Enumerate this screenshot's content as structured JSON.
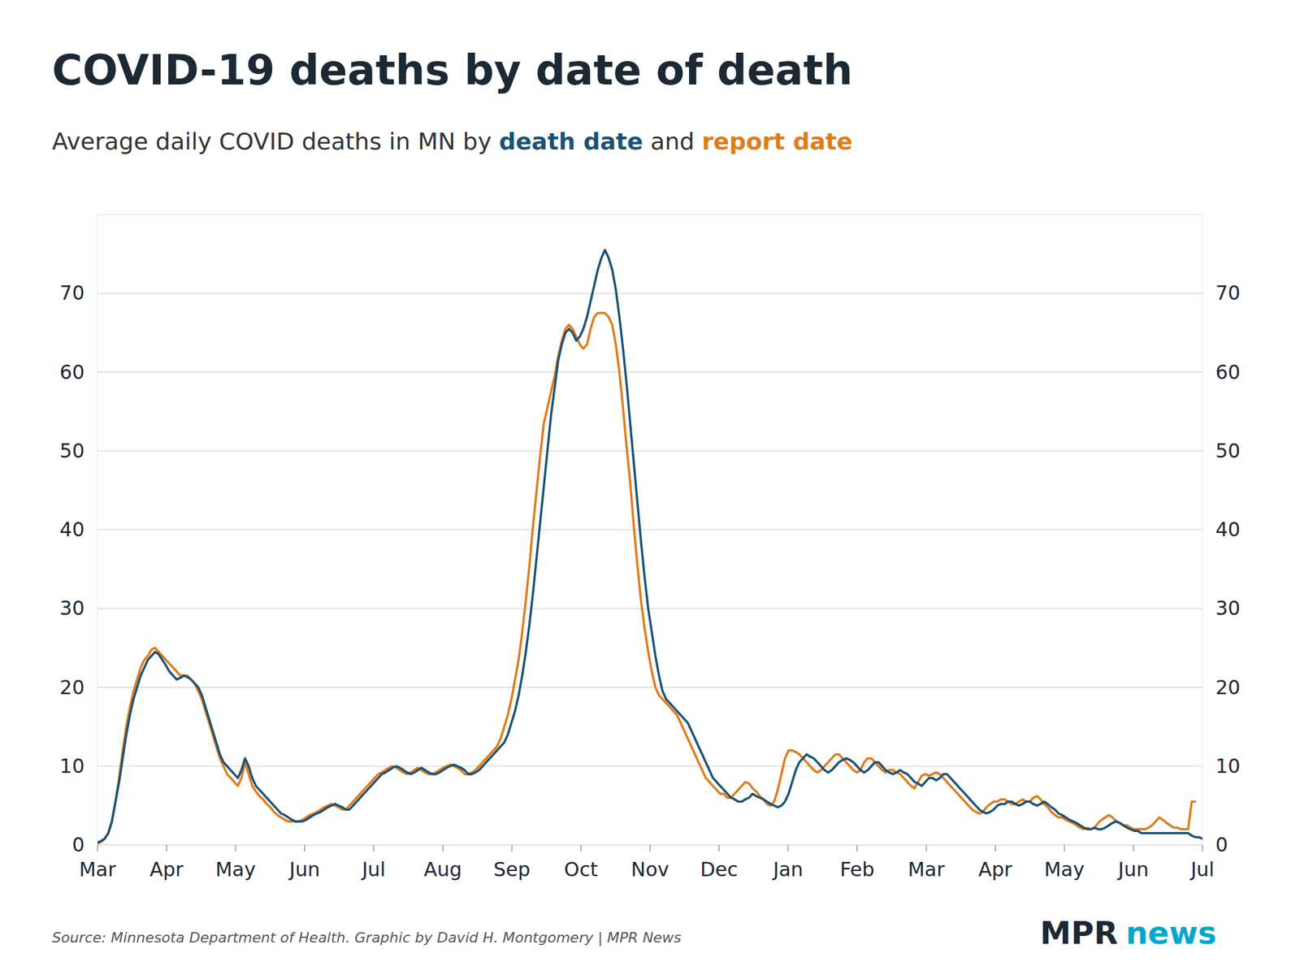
{
  "chart_data": {
    "type": "line",
    "title": "COVID-19 deaths by date of death",
    "subtitle": [
      "Average daily COVID deaths in MN by ",
      " and "
    ],
    "annotations": [
      "Source: Minnesota Department of Health. Graphic by David H. Montgomery | MPR News",
      "MPR",
      "news"
    ],
    "grid": true,
    "xlim": [
      0,
      307
    ],
    "xticks": [
      {
        "value": 0,
        "label": "Mar"
      },
      {
        "value": 19.1875,
        "label": "Apr"
      },
      {
        "value": 38.375,
        "label": "May"
      },
      {
        "value": 57.5625,
        "label": "Jun"
      },
      {
        "value": 76.75,
        "label": "Jul"
      },
      {
        "value": 95.9375,
        "label": "Aug"
      },
      {
        "value": 115.125,
        "label": "Sep"
      },
      {
        "value": 134.3125,
        "label": "Oct"
      },
      {
        "value": 153.5,
        "label": "Nov"
      },
      {
        "value": 172.6875,
        "label": "Dec"
      },
      {
        "value": 191.875,
        "label": "Jan"
      },
      {
        "value": 211.0625,
        "label": "Feb"
      },
      {
        "value": 230.25,
        "label": "Mar"
      },
      {
        "value": 249.4375,
        "label": "Apr"
      },
      {
        "value": 268.625,
        "label": "May"
      },
      {
        "value": 287.8125,
        "label": "Jun"
      },
      {
        "value": 307,
        "label": "Jul"
      }
    ],
    "ylim": [
      0,
      80
    ],
    "yticks": [
      0,
      10,
      20,
      30,
      40,
      50,
      60,
      70
    ],
    "x": [
      0,
      1,
      2,
      3,
      4,
      5,
      6,
      7,
      8,
      9,
      10,
      11,
      12,
      13,
      14,
      15,
      16,
      17,
      18,
      19,
      20,
      21,
      22,
      23,
      24,
      25,
      26,
      27,
      28,
      29,
      30,
      31,
      32,
      33,
      34,
      35,
      36,
      37,
      38,
      39,
      40,
      41,
      42,
      43,
      44,
      45,
      46,
      47,
      48,
      49,
      50,
      51,
      52,
      53,
      54,
      55,
      56,
      57,
      58,
      59,
      60,
      61,
      62,
      63,
      64,
      65,
      66,
      67,
      68,
      69,
      70,
      71,
      72,
      73,
      74,
      75,
      76,
      77,
      78,
      79,
      80,
      81,
      82,
      83,
      84,
      85,
      86,
      87,
      88,
      89,
      90,
      91,
      92,
      93,
      94,
      95,
      96,
      97,
      98,
      99,
      100,
      101,
      102,
      103,
      104,
      105,
      106,
      107,
      108,
      109,
      110,
      111,
      112,
      113,
      114,
      115,
      116,
      117,
      118,
      119,
      120,
      121,
      122,
      123,
      124,
      125,
      126,
      127,
      128,
      129,
      130,
      131,
      132,
      133,
      134,
      135,
      136,
      137,
      138,
      139,
      140,
      141,
      142,
      143,
      144,
      145,
      146,
      147,
      148,
      149,
      150,
      151,
      152,
      153,
      154,
      155,
      156,
      157,
      158,
      159,
      160,
      161,
      162,
      163,
      164,
      165,
      166,
      167,
      168,
      169,
      170,
      171,
      172,
      173,
      174,
      175,
      176,
      177,
      178,
      179,
      180,
      181,
      182,
      183,
      184,
      185,
      186,
      187,
      188,
      189,
      190,
      191,
      192,
      193,
      194,
      195,
      196,
      197,
      198,
      199,
      200,
      201,
      202,
      203,
      204,
      205,
      206,
      207,
      208,
      209,
      210,
      211,
      212,
      213,
      214,
      215,
      216,
      217,
      218,
      219,
      220,
      221,
      222,
      223,
      224,
      225,
      226,
      227,
      228,
      229,
      230,
      231,
      232,
      233,
      234,
      235,
      236,
      237,
      238,
      239,
      240,
      241,
      242,
      243,
      244,
      245,
      246,
      247,
      248,
      249,
      250,
      251,
      252,
      253,
      254,
      255,
      256,
      257,
      258,
      259,
      260,
      261,
      262,
      263,
      264,
      265,
      266,
      267,
      268,
      269,
      270,
      271,
      272,
      273,
      274,
      275,
      276,
      277,
      278,
      279,
      280,
      281,
      282,
      283,
      284,
      285,
      286,
      287,
      288,
      289,
      290,
      291,
      292,
      293,
      294,
      295,
      296,
      297,
      298,
      299,
      300,
      301,
      302,
      303,
      304,
      305,
      306,
      307
    ],
    "series": [
      {
        "name": "death date",
        "color": "#1a5276",
        "values": [
          0.3,
          0.5,
          0.8,
          1.5,
          3.0,
          5.5,
          8.0,
          11.0,
          14.0,
          16.5,
          18.5,
          20.0,
          21.5,
          22.5,
          23.5,
          24.0,
          24.5,
          24.2,
          23.5,
          22.8,
          22.0,
          21.5,
          21.0,
          21.2,
          21.5,
          21.3,
          21.0,
          20.5,
          20.0,
          19.0,
          17.5,
          16.0,
          14.5,
          13.0,
          11.5,
          10.5,
          10.0,
          9.5,
          9.0,
          8.5,
          9.5,
          11.0,
          10.0,
          8.5,
          7.5,
          7.0,
          6.5,
          6.0,
          5.5,
          5.0,
          4.5,
          4.0,
          3.8,
          3.5,
          3.2,
          3.0,
          3.0,
          3.0,
          3.2,
          3.5,
          3.8,
          4.0,
          4.2,
          4.5,
          4.8,
          5.0,
          5.2,
          5.0,
          4.8,
          4.5,
          4.5,
          5.0,
          5.5,
          6.0,
          6.5,
          7.0,
          7.5,
          8.0,
          8.5,
          9.0,
          9.2,
          9.5,
          9.8,
          10.0,
          9.8,
          9.5,
          9.2,
          9.0,
          9.2,
          9.5,
          9.8,
          9.5,
          9.2,
          9.0,
          9.0,
          9.2,
          9.5,
          9.8,
          10.0,
          10.2,
          10.0,
          9.8,
          9.5,
          9.0,
          9.0,
          9.2,
          9.5,
          10.0,
          10.5,
          11.0,
          11.5,
          12.0,
          12.5,
          13.0,
          14.0,
          15.5,
          17.0,
          19.0,
          21.5,
          24.5,
          28.0,
          32.0,
          36.5,
          41.0,
          45.5,
          50.0,
          54.5,
          58.0,
          61.5,
          63.5,
          65.0,
          65.5,
          65.0,
          64.0,
          64.5,
          65.5,
          67.0,
          69.0,
          71.0,
          73.0,
          74.5,
          75.5,
          74.5,
          73.0,
          70.5,
          67.0,
          63.0,
          58.5,
          53.5,
          48.5,
          43.5,
          38.5,
          34.0,
          30.0,
          27.0,
          24.0,
          21.5,
          19.5,
          18.5,
          18.0,
          17.5,
          17.0,
          16.5,
          16.0,
          15.5,
          14.5,
          13.5,
          12.5,
          11.5,
          10.5,
          9.5,
          8.5,
          8.0,
          7.5,
          7.0,
          6.5,
          6.0,
          5.8,
          5.5,
          5.5,
          5.8,
          6.0,
          6.5,
          6.2,
          6.0,
          5.8,
          5.5,
          5.2,
          5.0,
          4.8,
          5.0,
          5.5,
          6.5,
          8.0,
          9.5,
          10.5,
          11.0,
          11.5,
          11.2,
          11.0,
          10.5,
          10.0,
          9.5,
          9.2,
          9.5,
          10.0,
          10.5,
          10.8,
          11.0,
          10.8,
          10.5,
          10.0,
          9.5,
          9.2,
          9.5,
          10.0,
          10.5,
          10.5,
          10.0,
          9.5,
          9.2,
          9.0,
          9.2,
          9.5,
          9.2,
          9.0,
          8.5,
          8.0,
          7.8,
          7.5,
          8.0,
          8.5,
          8.5,
          8.2,
          8.5,
          9.0,
          9.0,
          8.5,
          8.0,
          7.5,
          7.0,
          6.5,
          6.0,
          5.5,
          5.0,
          4.5,
          4.2,
          4.0,
          4.2,
          4.5,
          5.0,
          5.2,
          5.2,
          5.5,
          5.5,
          5.2,
          5.0,
          5.2,
          5.5,
          5.5,
          5.2,
          5.0,
          5.2,
          5.5,
          5.2,
          4.8,
          4.5,
          4.0,
          3.8,
          3.5,
          3.2,
          3.0,
          2.8,
          2.5,
          2.2,
          2.0,
          2.0,
          2.2,
          2.0,
          2.0,
          2.2,
          2.5,
          2.8,
          3.0,
          2.8,
          2.5,
          2.2,
          2.0,
          1.8,
          1.8,
          1.5,
          1.5,
          1.5,
          1.5,
          1.5,
          1.5,
          1.5,
          1.5,
          1.5,
          1.5,
          1.5,
          1.5,
          1.5,
          1.5,
          1.2,
          1.0,
          1.0,
          0.8
        ]
      },
      {
        "name": "report date",
        "color": "#e07b1a",
        "values": [
          0.2,
          0.4,
          0.8,
          1.5,
          3.0,
          5.5,
          8.5,
          12.0,
          15.0,
          17.5,
          19.5,
          21.0,
          22.5,
          23.5,
          24.0,
          24.8,
          25.0,
          24.5,
          24.0,
          23.5,
          23.0,
          22.5,
          22.0,
          21.5,
          21.5,
          21.5,
          21.0,
          20.5,
          19.5,
          18.5,
          17.0,
          15.5,
          14.0,
          12.5,
          11.0,
          10.0,
          9.0,
          8.5,
          8.0,
          7.5,
          8.5,
          10.5,
          9.0,
          7.5,
          6.8,
          6.2,
          5.8,
          5.2,
          4.8,
          4.2,
          3.8,
          3.5,
          3.2,
          3.0,
          3.0,
          3.0,
          3.0,
          3.2,
          3.5,
          3.8,
          4.0,
          4.2,
          4.5,
          4.8,
          5.0,
          5.2,
          5.0,
          4.8,
          4.5,
          4.5,
          5.0,
          5.5,
          6.0,
          6.5,
          7.0,
          7.5,
          8.0,
          8.5,
          9.0,
          9.2,
          9.5,
          9.8,
          10.0,
          9.8,
          9.5,
          9.2,
          9.0,
          9.2,
          9.5,
          9.8,
          9.5,
          9.2,
          9.0,
          9.0,
          9.2,
          9.5,
          9.8,
          10.0,
          10.2,
          10.0,
          9.8,
          9.5,
          9.0,
          9.0,
          9.2,
          9.5,
          10.0,
          10.5,
          11.0,
          11.5,
          12.0,
          12.5,
          13.5,
          15.0,
          16.5,
          18.5,
          21.0,
          23.5,
          27.0,
          31.0,
          35.5,
          40.5,
          45.0,
          49.5,
          53.5,
          55.5,
          57.5,
          59.5,
          62.0,
          64.0,
          65.5,
          66.0,
          65.5,
          64.5,
          63.5,
          63.0,
          63.5,
          65.5,
          67.0,
          67.5,
          67.5,
          67.5,
          67.0,
          66.0,
          63.5,
          60.0,
          55.5,
          50.5,
          46.0,
          40.5,
          35.5,
          31.0,
          27.5,
          24.5,
          22.0,
          20.0,
          19.0,
          18.5,
          18.0,
          17.5,
          17.0,
          16.5,
          15.5,
          14.5,
          13.5,
          12.5,
          11.5,
          10.5,
          9.5,
          8.5,
          8.0,
          7.5,
          7.0,
          6.5,
          6.5,
          6.0,
          6.0,
          6.5,
          7.0,
          7.5,
          8.0,
          7.8,
          7.2,
          6.8,
          6.2,
          5.8,
          5.2,
          5.0,
          5.5,
          7.0,
          9.0,
          11.0,
          12.0,
          12.0,
          11.8,
          11.5,
          11.0,
          10.5,
          10.0,
          9.5,
          9.2,
          9.5,
          10.0,
          10.5,
          11.0,
          11.5,
          11.5,
          11.0,
          10.5,
          10.0,
          9.5,
          9.2,
          9.5,
          10.5,
          11.0,
          11.0,
          10.5,
          10.0,
          9.5,
          9.2,
          9.5,
          9.5,
          9.2,
          9.0,
          8.5,
          8.0,
          7.5,
          7.2,
          8.0,
          8.8,
          9.0,
          8.8,
          9.0,
          9.2,
          9.0,
          8.5,
          8.0,
          7.5,
          7.0,
          6.5,
          6.0,
          5.5,
          5.0,
          4.5,
          4.2,
          4.0,
          4.2,
          4.8,
          5.2,
          5.5,
          5.5,
          5.8,
          5.8,
          5.5,
          5.2,
          5.2,
          5.5,
          5.8,
          5.5,
          5.5,
          6.0,
          6.2,
          5.8,
          5.2,
          4.8,
          4.2,
          3.8,
          3.5,
          3.5,
          3.2,
          3.0,
          2.8,
          2.5,
          2.2,
          2.0,
          2.2,
          2.0,
          2.2,
          2.8,
          3.2,
          3.5,
          3.8,
          3.5,
          3.0,
          2.8,
          2.5,
          2.5,
          2.2,
          2.0,
          2.0,
          2.0,
          2.0,
          2.2,
          2.5,
          3.0,
          3.5,
          3.2,
          2.8,
          2.5,
          2.2,
          2.2,
          2.0,
          2.0,
          2.0,
          5.5,
          5.5,
          null,
          null
        ]
      }
    ]
  }
}
